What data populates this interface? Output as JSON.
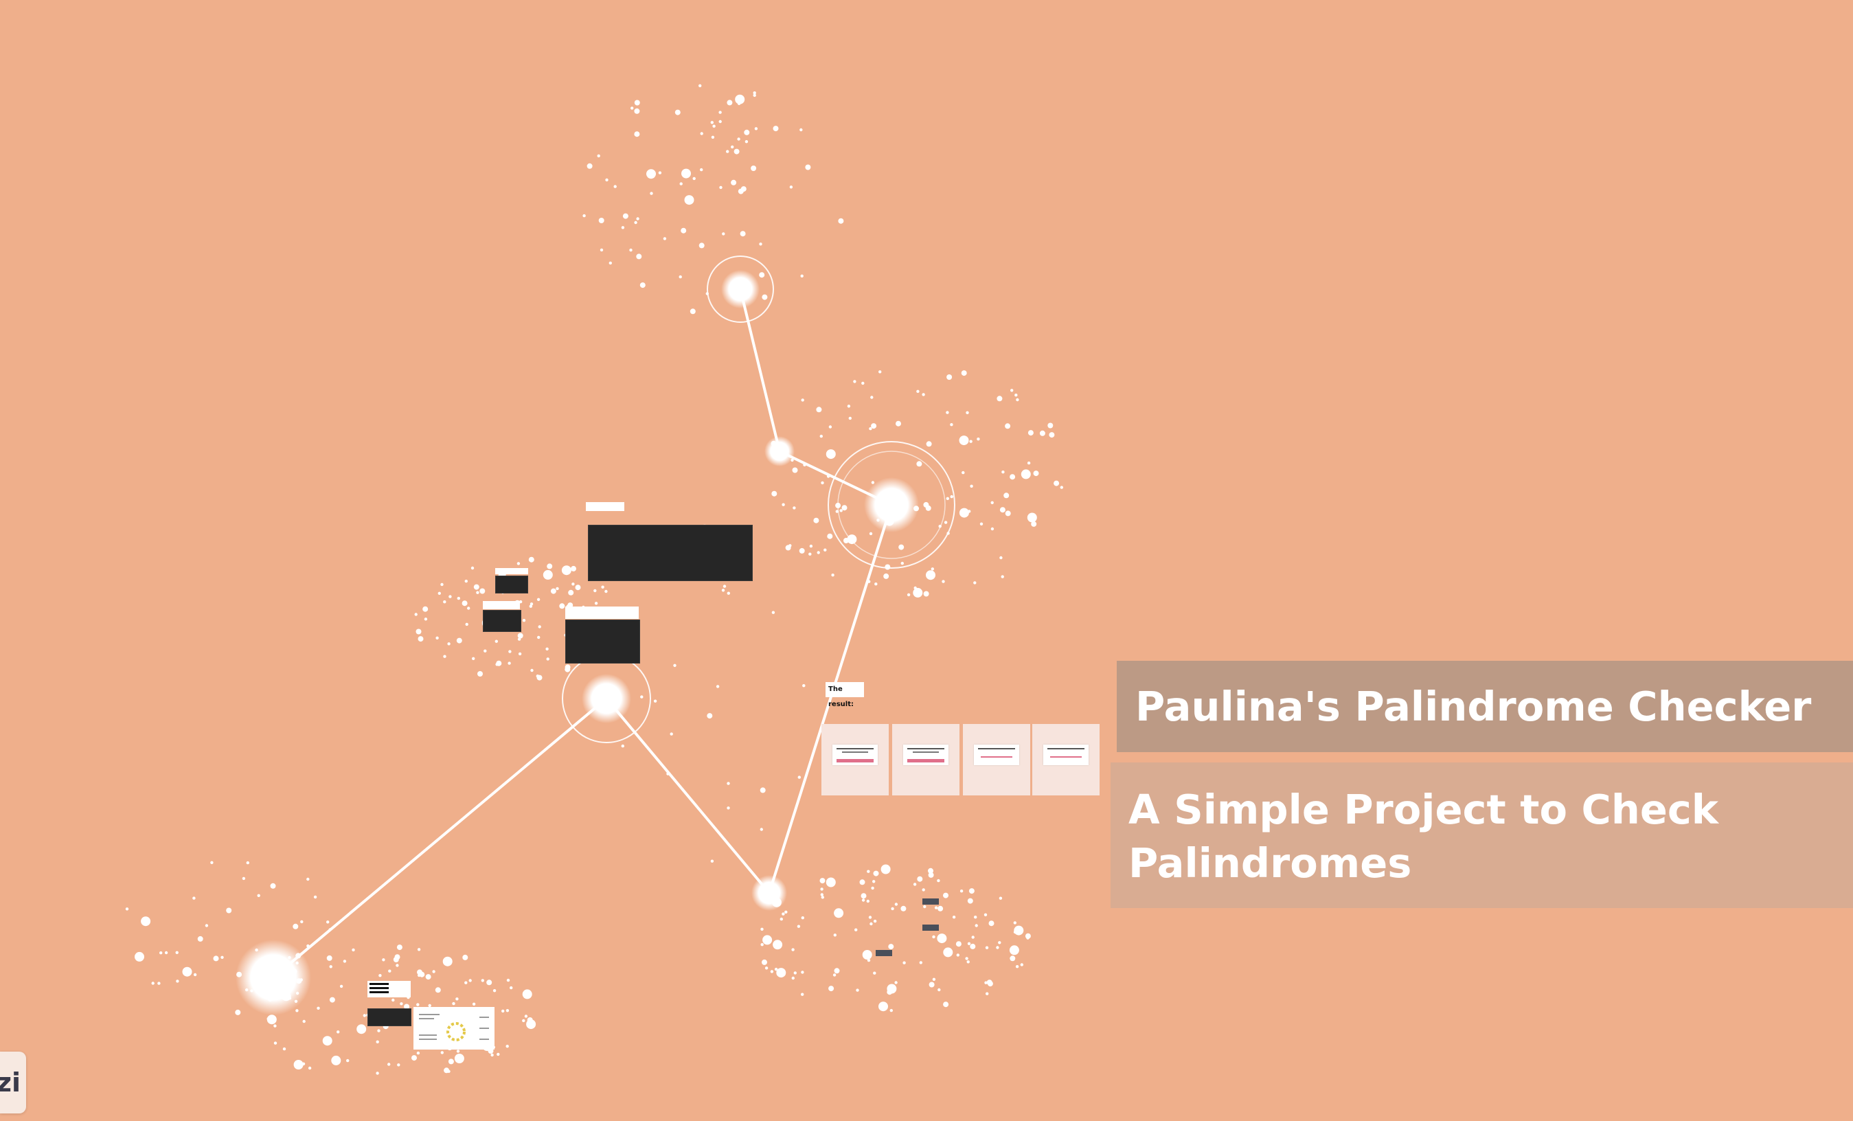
{
  "presentation": {
    "title": "Paulina's Palindrome Checker",
    "subtitle": "A Simple Project to Check Palindromes",
    "result_label": "The result:",
    "background_color": "#efaf8b"
  },
  "badge": {
    "label": "zi",
    "icon": "prezi-logo-icon"
  }
}
